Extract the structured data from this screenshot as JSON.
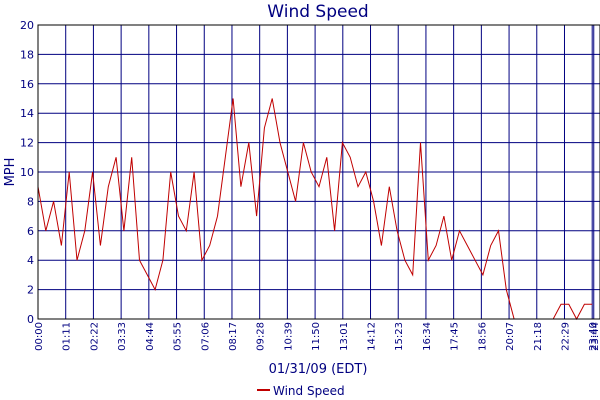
{
  "chart_data": {
    "type": "line",
    "title": "Wind Speed",
    "ylabel": "MPH",
    "xlabel": "01/31/09 (EDT)",
    "ylim": [
      0,
      20
    ],
    "yticks": [
      0,
      2,
      4,
      6,
      8,
      10,
      12,
      14,
      16,
      18,
      20
    ],
    "xticks": [
      "00:00",
      "01:11",
      "02:22",
      "03:33",
      "04:44",
      "05:55",
      "07:06",
      "08:17",
      "09:28",
      "10:39",
      "11:50",
      "13:01",
      "14:12",
      "15:23",
      "16:34",
      "17:45",
      "18:56",
      "20:07",
      "21:18",
      "22:29",
      "23:40",
      "23:44"
    ],
    "grid": true,
    "legend": "bottom-center",
    "colors": {
      "series": "#c00000",
      "grid": "#000080",
      "frame": "#000000",
      "text": "#000080"
    },
    "series": [
      {
        "name": "Wind Speed",
        "x": [
          "00:00",
          "00:20",
          "00:40",
          "01:00",
          "01:20",
          "01:40",
          "02:00",
          "02:20",
          "02:40",
          "03:00",
          "03:20",
          "03:40",
          "04:00",
          "04:20",
          "04:40",
          "05:00",
          "05:20",
          "05:40",
          "06:00",
          "06:20",
          "06:40",
          "07:00",
          "07:20",
          "07:40",
          "08:00",
          "08:20",
          "08:40",
          "09:00",
          "09:20",
          "09:40",
          "10:00",
          "10:20",
          "10:40",
          "11:00",
          "11:20",
          "11:40",
          "12:00",
          "12:20",
          "12:40",
          "13:00",
          "13:20",
          "13:40",
          "14:00",
          "14:20",
          "14:40",
          "15:00",
          "15:20",
          "15:40",
          "16:00",
          "16:20",
          "16:40",
          "17:00",
          "17:20",
          "17:40",
          "18:00",
          "18:20",
          "18:40",
          "19:00",
          "19:20",
          "19:40",
          "20:00",
          "20:20",
          "20:40",
          "21:00",
          "21:20",
          "21:40",
          "22:00",
          "22:20",
          "22:40",
          "23:00",
          "23:20",
          "23:40"
        ],
        "values": [
          9,
          6,
          8,
          5,
          10,
          4,
          6,
          10,
          5,
          9,
          11,
          6,
          11,
          4,
          3,
          2,
          4,
          10,
          7,
          6,
          10,
          4,
          5,
          7,
          11,
          15,
          9,
          12,
          7,
          13,
          15,
          12,
          10,
          8,
          12,
          10,
          9,
          11,
          6,
          12,
          11,
          9,
          10,
          8,
          5,
          9,
          6,
          4,
          3,
          12,
          4,
          5,
          7,
          4,
          6,
          5,
          4,
          3,
          5,
          6,
          2,
          0,
          0,
          0,
          0,
          0,
          0,
          1,
          1,
          0,
          1,
          1
        ]
      }
    ]
  }
}
